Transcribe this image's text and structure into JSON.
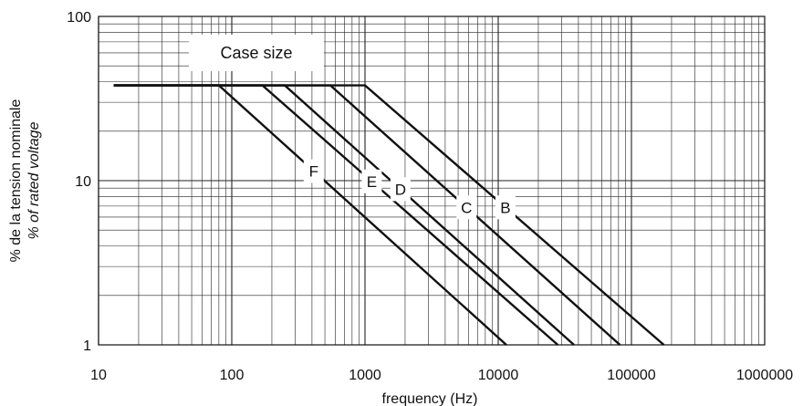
{
  "chart_data": {
    "type": "line",
    "x_scale": "log",
    "y_scale": "log",
    "xlim": [
      10,
      1000000
    ],
    "ylim": [
      1,
      100
    ],
    "x_ticks": [
      "10",
      "100",
      "1000",
      "10000",
      "100000",
      "1000000"
    ],
    "y_ticks": [
      "1",
      "10",
      "100"
    ],
    "xlabel": "frequency (Hz)",
    "ylabel": "% de la tension nominale",
    "ylabel_italic": "% of rated voltage",
    "legend_title": "Case size",
    "grid": true,
    "series": [
      {
        "name": "B",
        "x": [
          13,
          1000,
          175000
        ],
        "y": [
          38,
          38,
          1
        ]
      },
      {
        "name": "C",
        "x": [
          13,
          550,
          82000
        ],
        "y": [
          38,
          38,
          1
        ]
      },
      {
        "name": "D",
        "x": [
          13,
          250,
          37000
        ],
        "y": [
          38,
          38,
          1
        ]
      },
      {
        "name": "E",
        "x": [
          13,
          170,
          28000
        ],
        "y": [
          38,
          38,
          1
        ]
      },
      {
        "name": "F",
        "x": [
          13,
          80,
          11500
        ],
        "y": [
          38,
          38,
          1
        ]
      }
    ]
  }
}
